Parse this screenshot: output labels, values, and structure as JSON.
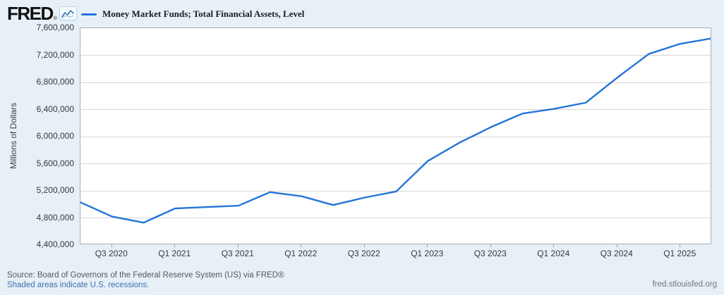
{
  "header": {
    "logo_text": "FRED",
    "logo_reg": "®"
  },
  "legend": {
    "label": "Money Market Funds; Total Financial Assets, Level"
  },
  "footer": {
    "source": "Source: Board of Governors of the Federal Reserve System (US) via FRED®",
    "recessions_note": "Shaded areas indicate U.S. recessions.",
    "site_url": "fred.stlouisfed.org"
  },
  "colors": {
    "line_blue": "#2574d8",
    "background": "#e7f0f7",
    "link_blue": "#3e6fb0"
  },
  "chart_data": {
    "type": "line",
    "title": "Money Market Funds; Total Financial Assets, Level",
    "xlabel": "",
    "ylabel": "Millions of Dollars",
    "ylim": [
      4400000,
      7600000
    ],
    "ytick_step": 400000,
    "grid": true,
    "legend_position": "top-left",
    "x": [
      "2020 Q2",
      "2020 Q3",
      "2020 Q4",
      "2021 Q1",
      "2021 Q2",
      "2021 Q3",
      "2021 Q4",
      "2022 Q1",
      "2022 Q2",
      "2022 Q3",
      "2022 Q4",
      "2023 Q1",
      "2023 Q2",
      "2023 Q3",
      "2023 Q4",
      "2024 Q1",
      "2024 Q2",
      "2024 Q3",
      "2024 Q4",
      "2025 Q1",
      "2025 Q2"
    ],
    "series": [
      {
        "name": "Money Market Funds; Total Financial Assets, Level",
        "values": [
          5030000,
          4820000,
          4730000,
          4940000,
          4960000,
          4980000,
          5180000,
          5120000,
          4990000,
          5100000,
          5190000,
          5640000,
          5910000,
          6140000,
          6340000,
          6410000,
          6500000,
          6870000,
          7220000,
          7370000,
          7450000
        ]
      }
    ],
    "yticks": [
      "7,600,000",
      "7,200,000",
      "6,800,000",
      "6,400,000",
      "6,000,000",
      "5,600,000",
      "5,200,000",
      "4,800,000",
      "4,400,000"
    ],
    "xticks": [
      {
        "label": "Q3 2020",
        "i": 1
      },
      {
        "label": "Q1 2021",
        "i": 3
      },
      {
        "label": "Q3 2021",
        "i": 5
      },
      {
        "label": "Q1 2022",
        "i": 7
      },
      {
        "label": "Q3 2022",
        "i": 9
      },
      {
        "label": "Q1 2023",
        "i": 11
      },
      {
        "label": "Q3 2023",
        "i": 13
      },
      {
        "label": "Q1 2024",
        "i": 15
      },
      {
        "label": "Q3 2024",
        "i": 17
      },
      {
        "label": "Q1 2025",
        "i": 19
      }
    ]
  }
}
